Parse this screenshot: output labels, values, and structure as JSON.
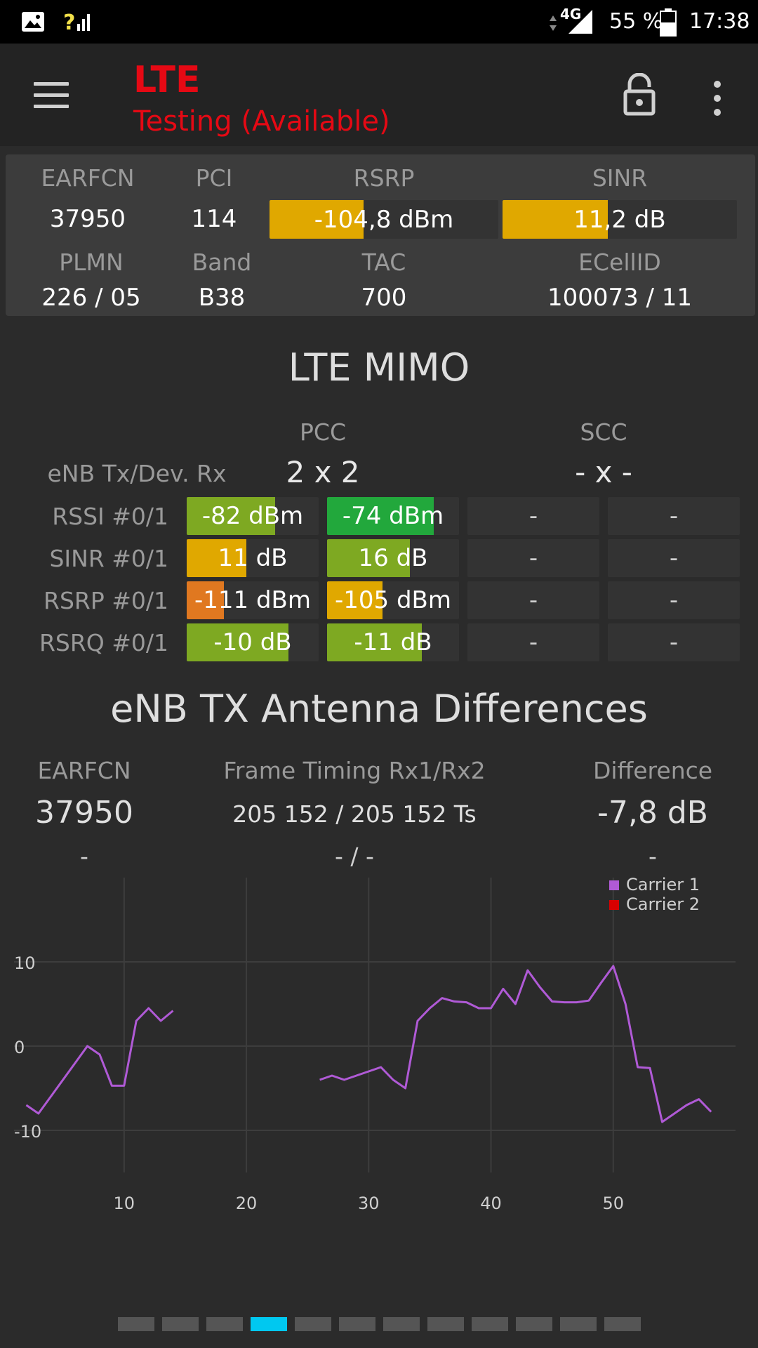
{
  "status_bar": {
    "battery": "55 %",
    "time": "17:38",
    "network": "4G"
  },
  "app_bar": {
    "title": "LTE",
    "subtitle": "Testing (Available)"
  },
  "info": {
    "labels": {
      "earfcn": "EARFCN",
      "pci": "PCI",
      "rsrp": "RSRP",
      "sinr": "SINR",
      "plmn": "PLMN",
      "band": "Band",
      "tac": "TAC",
      "ecellid": "ECellID"
    },
    "earfcn": "37950",
    "pci": "114",
    "rsrp": "-104,8 dBm",
    "rsrp_fill": 0.41,
    "sinr": "11,2 dB",
    "sinr_fill": 0.45,
    "plmn": "226 / 05",
    "band": "B38",
    "tac": "700",
    "ecellid": "100073 / 11"
  },
  "mimo": {
    "title": "LTE MIMO",
    "pcc": "PCC",
    "scc": "SCC",
    "row0_label": "eNB Tx/Dev. Rx",
    "pcc_value": "2 x 2",
    "scc_value": "- x -",
    "rows": [
      {
        "label": "RSSI #0/1",
        "v0": "-82 dBm",
        "f0": 0.67,
        "c0": "#7ea922",
        "v1": "-74 dBm",
        "f1": 0.81,
        "c1": "#22a83c",
        "v2": "-",
        "v3": "-"
      },
      {
        "label": "SINR #0/1",
        "v0": "11 dB",
        "f0": 0.45,
        "c0": "#e0a800",
        "v1": "16 dB",
        "f1": 0.63,
        "c1": "#7ea922",
        "v2": "-",
        "v3": "-"
      },
      {
        "label": "RSRP #0/1",
        "v0": "-111 dBm",
        "f0": 0.28,
        "c0": "#e07820",
        "v1": "-105 dBm",
        "f1": 0.42,
        "c1": "#e0a800",
        "v2": "-",
        "v3": "-"
      },
      {
        "label": "RSRQ #0/1",
        "v0": "-10 dB",
        "f0": 0.77,
        "c0": "#7ea922",
        "v1": "-11 dB",
        "f1": 0.72,
        "c1": "#7ea922",
        "v2": "-",
        "v3": "-"
      }
    ]
  },
  "diff": {
    "title": "eNB TX Antenna Differences",
    "col1": "EARFCN",
    "col2": "Frame Timing Rx1/Rx2",
    "col3": "Difference",
    "r1c1": "37950",
    "r1c2": "205 152 / 205 152 Ts",
    "r1c3": "-7,8 dB",
    "r2c1": "-",
    "r2c2": "- / -",
    "r2c3": "-"
  },
  "chart_data": {
    "type": "line",
    "xlim": [
      1,
      60
    ],
    "ylim": [
      -15,
      20
    ],
    "x_ticks": [
      10,
      20,
      30,
      40,
      50
    ],
    "y_ticks": [
      10,
      0,
      -10
    ],
    "grid": true,
    "legend_position": "top-right",
    "series": [
      {
        "name": "Carrier 1",
        "color": "#b05ad6",
        "segments": [
          [
            [
              2,
              -7
            ],
            [
              3,
              -8
            ],
            [
              4,
              -6
            ],
            [
              5,
              -4
            ],
            [
              6,
              -2
            ],
            [
              7,
              0
            ],
            [
              8,
              -1
            ],
            [
              9,
              -4.7
            ],
            [
              10,
              -4.7
            ],
            [
              11,
              3
            ],
            [
              12,
              4.5
            ],
            [
              13,
              3
            ],
            [
              14,
              4.2
            ]
          ],
          [
            [
              26,
              -4
            ],
            [
              27,
              -3.5
            ],
            [
              28,
              -4
            ],
            [
              29,
              -3.5
            ],
            [
              30,
              -3
            ],
            [
              31,
              -2.5
            ],
            [
              32,
              -4
            ],
            [
              33,
              -5
            ],
            [
              34,
              3
            ],
            [
              35,
              4.5
            ],
            [
              36,
              5.7
            ],
            [
              37,
              5.3
            ],
            [
              38,
              5.2
            ],
            [
              39,
              4.5
            ],
            [
              40,
              4.5
            ],
            [
              41,
              6.8
            ],
            [
              42,
              5
            ],
            [
              43,
              9
            ],
            [
              44,
              7
            ],
            [
              45,
              5.3
            ],
            [
              46,
              5.2
            ],
            [
              47,
              5.2
            ],
            [
              48,
              5.4
            ],
            [
              49,
              7.5
            ],
            [
              50,
              9.5
            ],
            [
              51,
              5
            ],
            [
              52,
              -2.5
            ],
            [
              53,
              -2.6
            ],
            [
              54,
              -9
            ],
            [
              55,
              -8
            ],
            [
              56,
              -7
            ],
            [
              57,
              -6.3
            ],
            [
              58,
              -7.8
            ]
          ]
        ]
      },
      {
        "name": "Carrier 2",
        "color": "#d80000",
        "segments": []
      }
    ]
  },
  "pager": {
    "count": 12,
    "active": 3,
    "active_color": "#00c8f0"
  }
}
